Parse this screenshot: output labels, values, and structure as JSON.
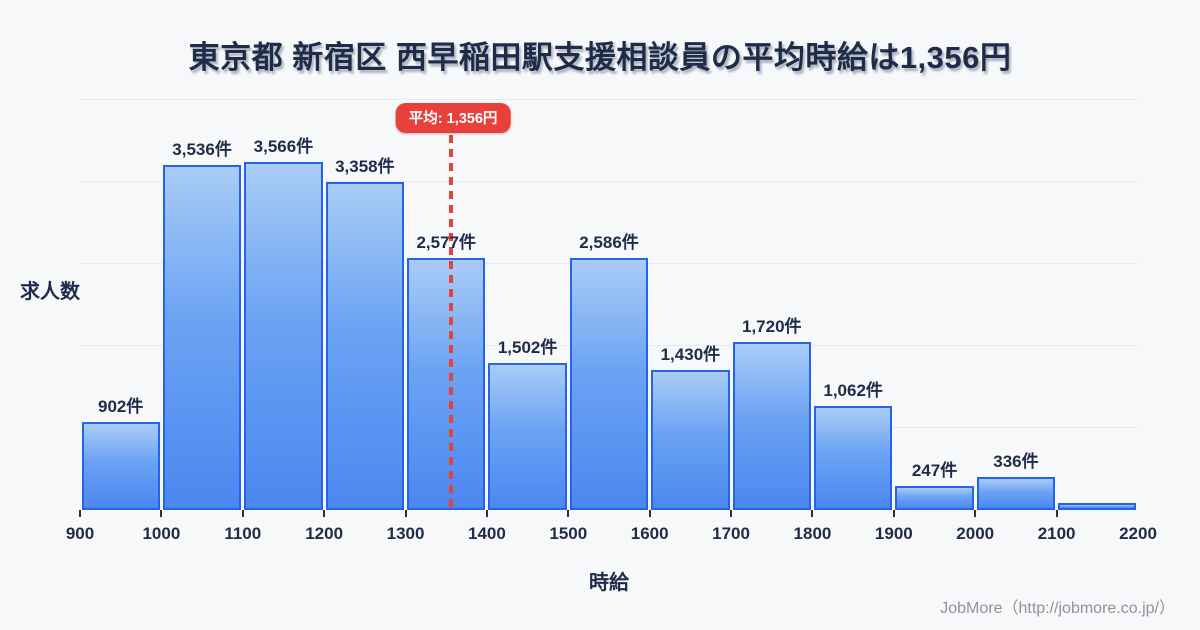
{
  "title": "東京都 新宿区 西早稲田駅支援相談員の平均時給は1,356円",
  "y_axis_label": "求人数",
  "x_axis_label": "時給",
  "average_badge_label": "平均: 1,356円",
  "footer_credit": "JobMore（http://jobmore.co.jp/）",
  "colors": {
    "background": "#f7f8fa",
    "title_text": "#1f2c49",
    "bar_border": "#2563eb",
    "bar_fill_top": "#a9ccf6",
    "bar_fill_bottom": "#4c87f0",
    "average_red": "#e8413c",
    "gridline": "#e7eaf1",
    "footer_gray": "#8e9299"
  },
  "chart_data": {
    "type": "bar",
    "title": "東京都 新宿区 西早稲田駅支援相談員の平均時給は1,356円",
    "xlabel": "時給",
    "ylabel": "求人数",
    "unit": "件",
    "bin_edges": [
      900,
      1000,
      1100,
      1200,
      1300,
      1400,
      1500,
      1600,
      1700,
      1800,
      1900,
      2000,
      2100,
      2200
    ],
    "x_tick_labels": [
      "900",
      "1000",
      "1100",
      "1200",
      "1300",
      "1400",
      "1500",
      "1600",
      "1700",
      "1800",
      "1900",
      "2000",
      "2100",
      "2200"
    ],
    "values": [
      902,
      3536,
      3566,
      3358,
      2577,
      1502,
      2586,
      1430,
      1720,
      1062,
      247,
      336,
      75
    ],
    "value_labels": [
      "902件",
      "3,536件",
      "3,566件",
      "3,358件",
      "2,577件",
      "1,502件",
      "2,586件",
      "1,430件",
      "1,720件",
      "1,062件",
      "247件",
      "336件",
      ""
    ],
    "average_value": 1356,
    "average_label": "平均: 1,356円",
    "ylim": [
      0,
      4200
    ],
    "grid": true,
    "gridline_count": 5,
    "legend": "none"
  }
}
